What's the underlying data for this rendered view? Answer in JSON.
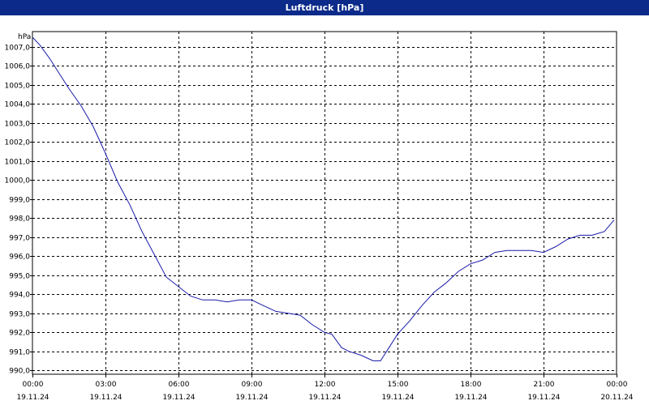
{
  "window": {
    "title": "Luftdruck [hPa]"
  },
  "chart_data": {
    "type": "line",
    "title": "Luftdruck [hPa]",
    "ylabel": "hPa",
    "xlabel": "",
    "ylim": [
      989.8,
      1007.8
    ],
    "xlim": [
      0,
      24
    ],
    "grid": true,
    "line_color": "#1a1aaa",
    "y_ticks": [
      {
        "value": 1007,
        "label": "1007,0"
      },
      {
        "value": 1006,
        "label": "1006,0"
      },
      {
        "value": 1005,
        "label": "1005,0"
      },
      {
        "value": 1004,
        "label": "1004,0"
      },
      {
        "value": 1003,
        "label": "1003,0"
      },
      {
        "value": 1002,
        "label": "1002,0"
      },
      {
        "value": 1001,
        "label": "1001,0"
      },
      {
        "value": 1000,
        "label": "1000,0"
      },
      {
        "value": 999,
        "label": "999,0"
      },
      {
        "value": 998,
        "label": "998,0"
      },
      {
        "value": 997,
        "label": "997,0"
      },
      {
        "value": 996,
        "label": "996,0"
      },
      {
        "value": 995,
        "label": "995,0"
      },
      {
        "value": 994,
        "label": "994,0"
      },
      {
        "value": 993,
        "label": "993,0"
      },
      {
        "value": 992,
        "label": "992,0"
      },
      {
        "value": 991,
        "label": "991,0"
      },
      {
        "value": 990,
        "label": "990,0"
      }
    ],
    "x_ticks": [
      {
        "value": 0,
        "time": "00:00",
        "date": "19.11.24"
      },
      {
        "value": 3,
        "time": "03:00",
        "date": "19.11.24"
      },
      {
        "value": 6,
        "time": "06:00",
        "date": "19.11.24"
      },
      {
        "value": 9,
        "time": "09:00",
        "date": "19.11.24"
      },
      {
        "value": 12,
        "time": "12:00",
        "date": "19.11.24"
      },
      {
        "value": 15,
        "time": "15:00",
        "date": "19.11.24"
      },
      {
        "value": 18,
        "time": "18:00",
        "date": "19.11.24"
      },
      {
        "value": 21,
        "time": "21:00",
        "date": "19.11.24"
      },
      {
        "value": 24,
        "time": "00:00",
        "date": "20.11.24"
      }
    ],
    "series": [
      {
        "x": [
          0,
          0.3,
          0.7,
          1.0,
          1.5,
          2.0,
          2.5,
          3.0,
          3.5,
          4.0,
          4.5,
          5.0,
          5.5,
          6.0,
          6.5,
          7.0,
          7.5,
          8.0,
          8.5,
          9.0,
          9.5,
          10.0,
          10.5,
          11.0,
          11.5,
          12.0,
          12.3,
          12.7,
          13.0,
          13.5,
          14.0,
          14.3,
          14.7,
          15.0,
          15.5,
          16.0,
          16.5,
          17.0,
          17.5,
          18.0,
          18.5,
          19.0,
          19.5,
          20.0,
          20.5,
          21.0,
          21.5,
          22.0,
          22.5,
          23.0,
          23.5,
          23.9
        ],
        "y": [
          1007.5,
          1007.1,
          1006.4,
          1005.8,
          1004.8,
          1003.9,
          1002.8,
          1001.4,
          999.9,
          998.7,
          997.3,
          996.1,
          994.9,
          994.4,
          993.9,
          993.7,
          993.7,
          993.6,
          993.7,
          993.7,
          993.4,
          993.1,
          993.0,
          992.9,
          992.4,
          992.0,
          991.9,
          991.2,
          991.0,
          990.8,
          990.5,
          990.5,
          991.3,
          991.9,
          992.6,
          993.4,
          994.1,
          994.6,
          995.2,
          995.6,
          995.8,
          996.2,
          996.3,
          996.3,
          996.3,
          996.2,
          996.5,
          996.9,
          997.1,
          997.1,
          997.3,
          997.9
        ]
      }
    ]
  }
}
